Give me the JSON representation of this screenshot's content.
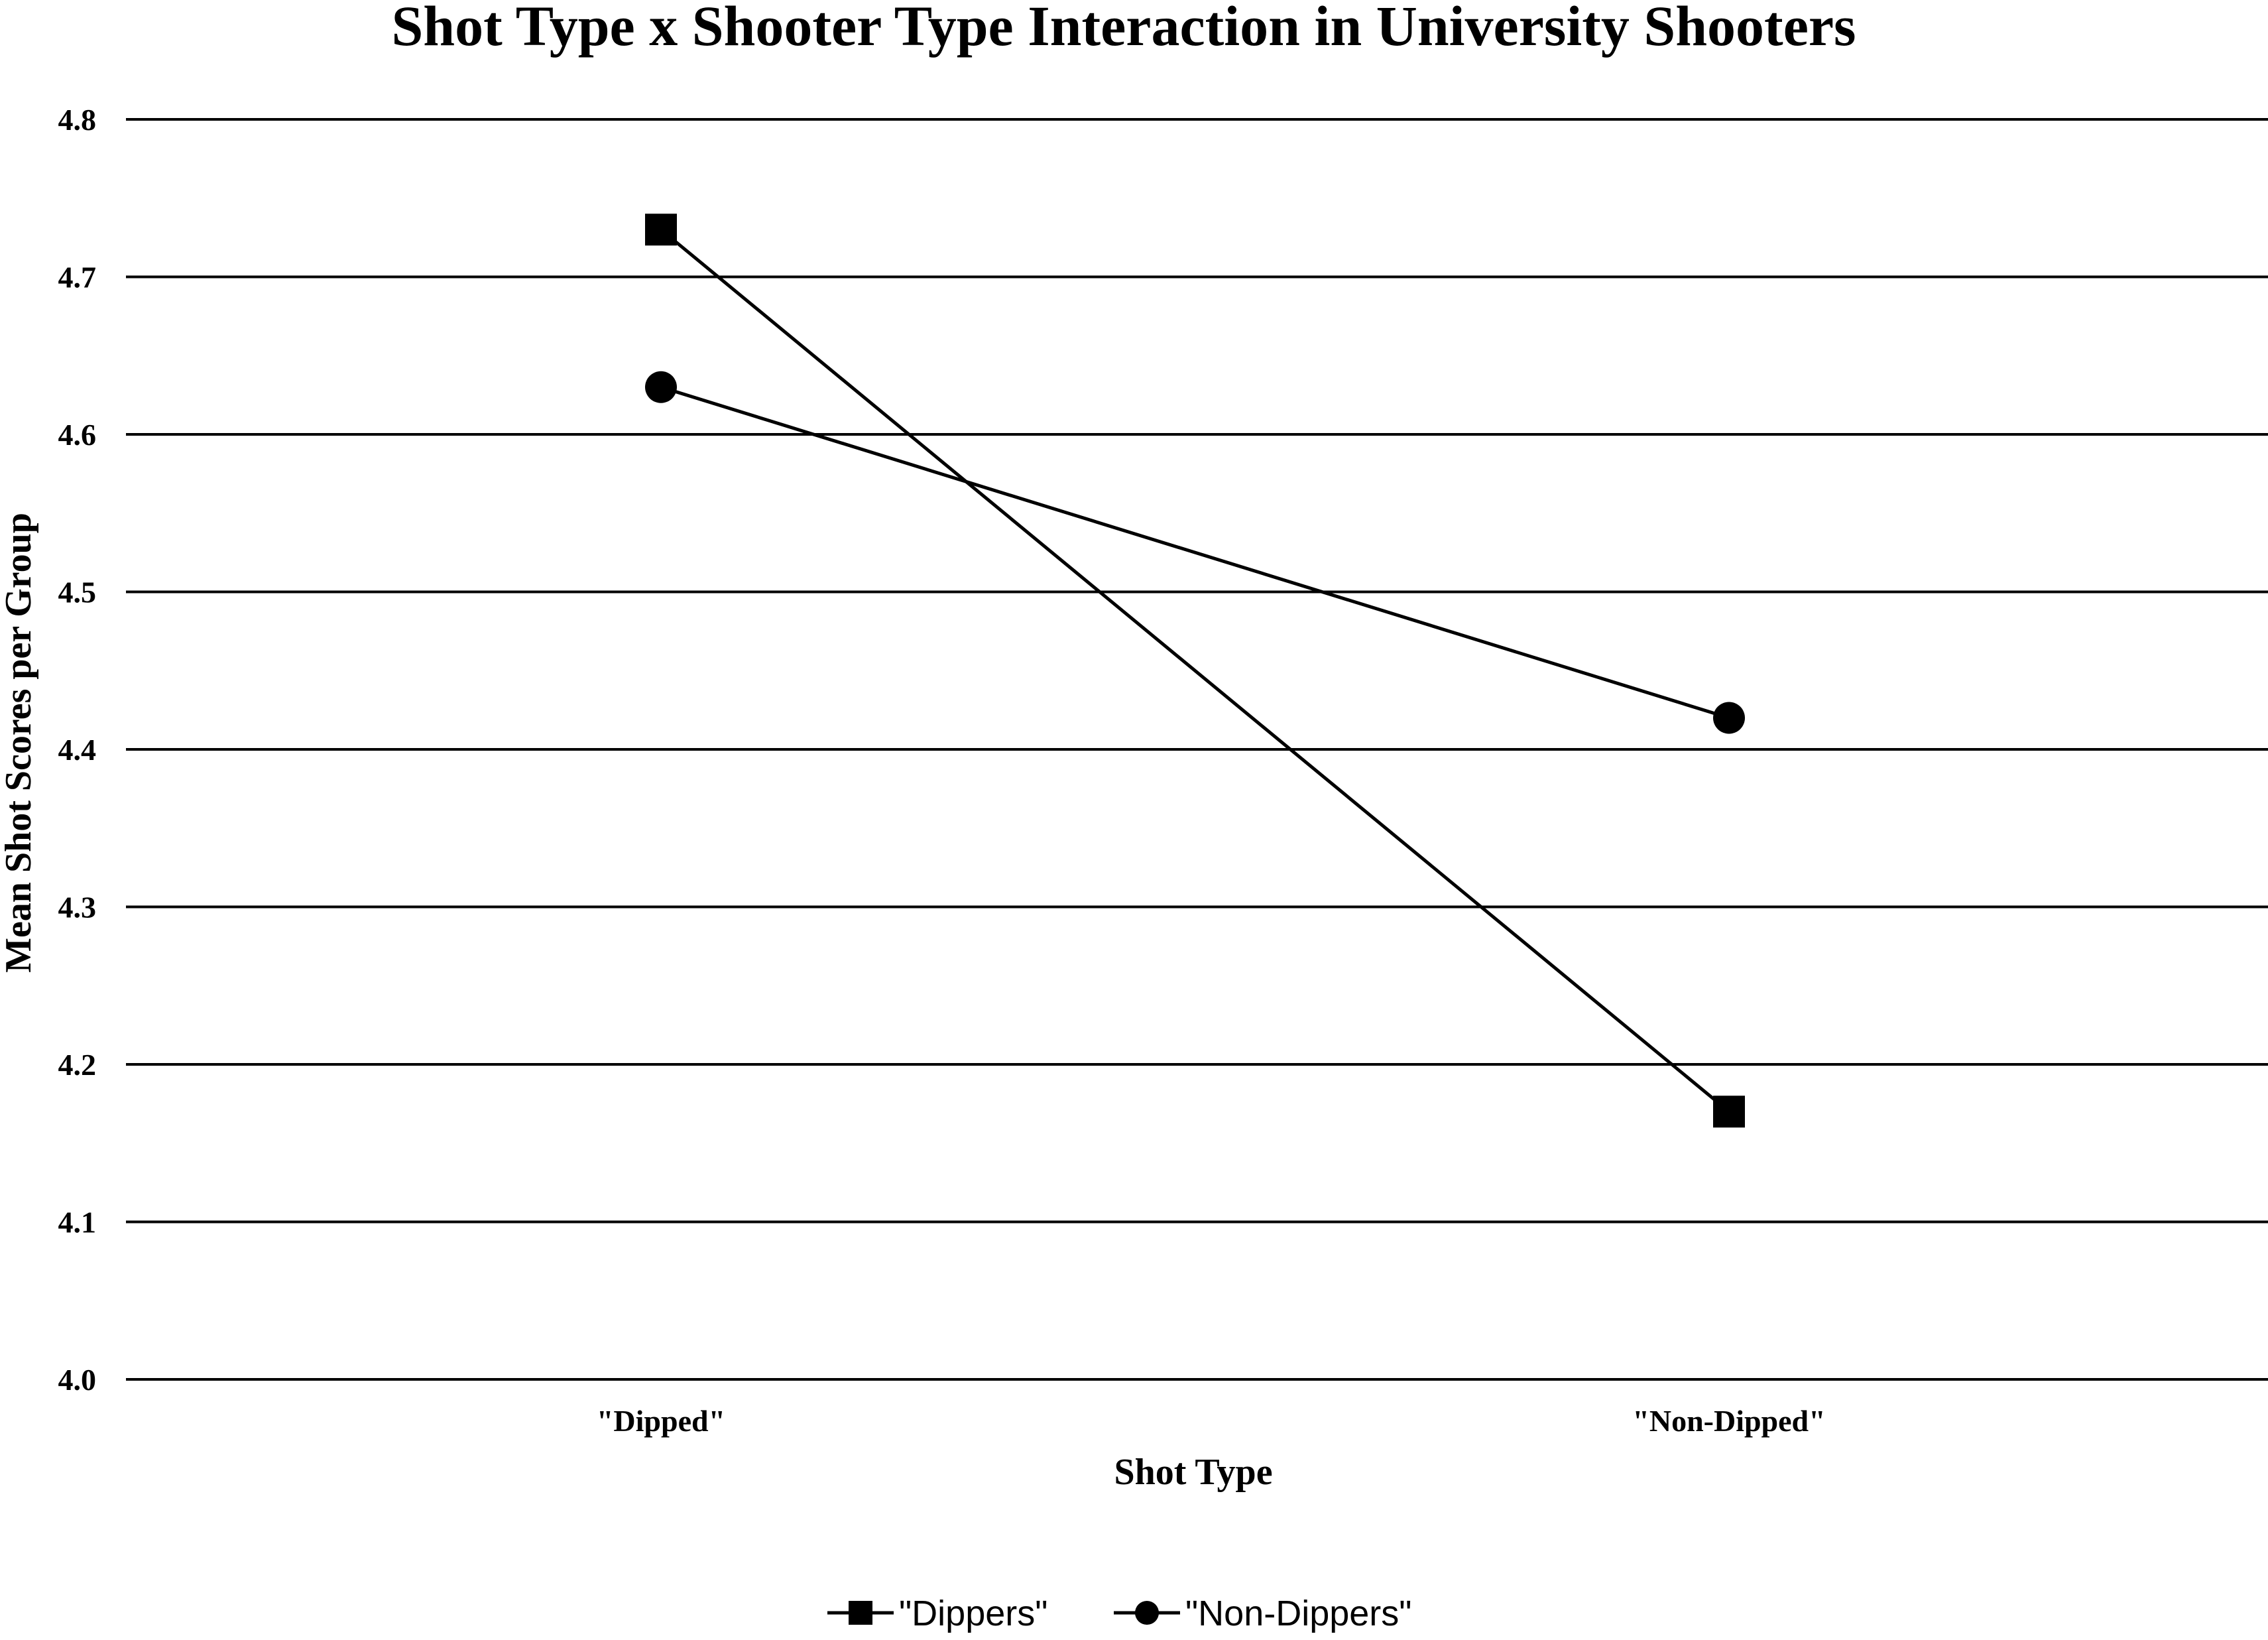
{
  "chart_data": {
    "type": "line",
    "title": "Shot Type x Shooter Type Interaction in University Shooters",
    "xlabel": "Shot Type",
    "ylabel": "Mean Shot Scores per Group",
    "categories": [
      "\"Dipped\"",
      "\"Non-Dipped\""
    ],
    "ylim": [
      4.0,
      4.8
    ],
    "yticks": [
      "4.0",
      "4.1",
      "4.2",
      "4.3",
      "4.4",
      "4.5",
      "4.6",
      "4.7",
      "4.8"
    ],
    "grid": true,
    "legend_position": "bottom",
    "series": [
      {
        "name": "\"Dippers\"",
        "marker": "square",
        "color": "#000000",
        "values": [
          4.73,
          4.17
        ]
      },
      {
        "name": "\"Non-Dippers\"",
        "marker": "circle",
        "color": "#000000",
        "values": [
          4.63,
          4.42
        ]
      }
    ]
  }
}
